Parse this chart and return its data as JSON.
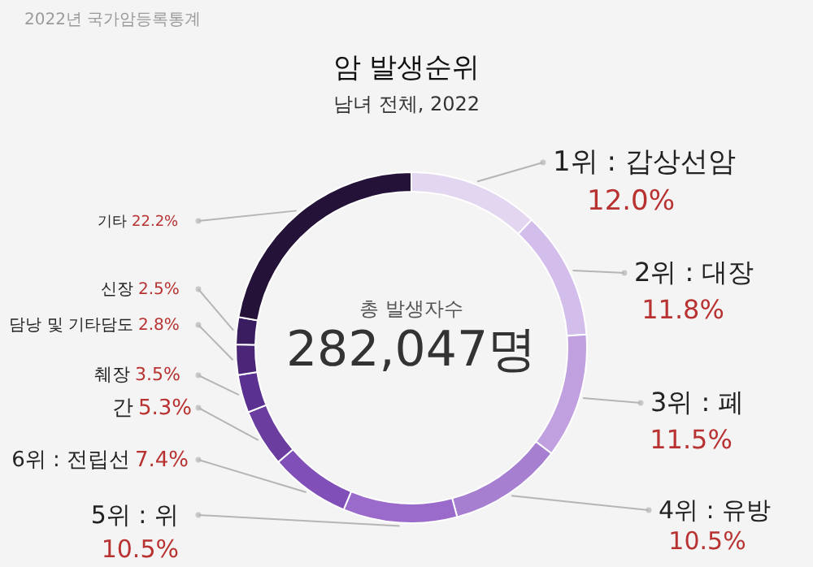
{
  "chart_data": {
    "type": "donut",
    "title": "암 발생순위",
    "subtitle": "남녀 전체, 2022",
    "categories": [
      "1위 : 갑상선암",
      "2위 : 대장",
      "3위 : 폐",
      "4위 : 유방",
      "5위 : 위",
      "6위 : 전립선",
      "간",
      "췌장",
      "담낭 및 기타담도",
      "신장",
      "기타"
    ],
    "values": [
      12.0,
      11.8,
      11.5,
      10.5,
      10.5,
      7.4,
      5.3,
      3.5,
      2.8,
      2.5,
      22.2
    ],
    "value_labels": [
      "12.0%",
      "11.8%",
      "11.5%",
      "10.5%",
      "10.5%",
      "7.4%",
      "5.3%",
      "3.5%",
      "2.8%",
      "2.5%",
      "22.2%"
    ],
    "colors": [
      "#e3d6f0",
      "#d3bdea",
      "#c0a0df",
      "#a67fd0",
      "#9a6bcb",
      "#8050b8",
      "#6a3d9e",
      "#5a3090",
      "#4a2578",
      "#3a1c60",
      "#241238"
    ],
    "annotations": [
      "2022년 국가암등록통계",
      "총 발생자수",
      "282,047명"
    ]
  }
}
